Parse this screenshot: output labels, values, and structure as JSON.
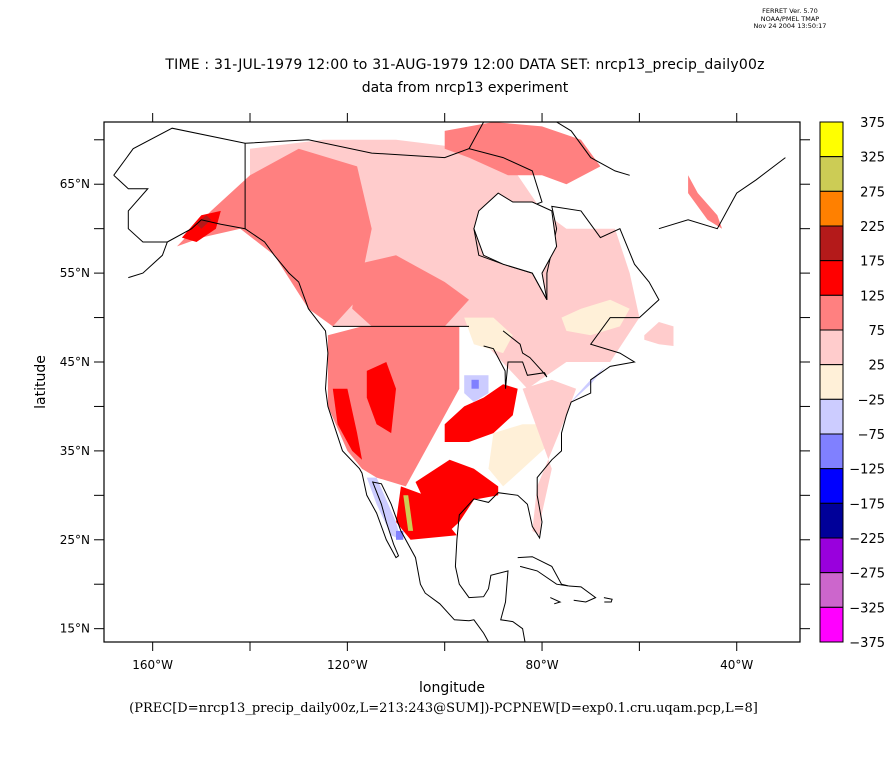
{
  "stamp": {
    "line1": "FERRET Ver. 5.70",
    "line2": "NOAA/PMEL TMAP",
    "line3": "Nov 24 2004 13:50:17"
  },
  "title": {
    "line1": "TIME : 31-JUL-1979 12:00 to 31-AUG-1979 12:00 DATA SET: nrcp13_precip_daily00z",
    "line2": "data from nrcp13 experiment"
  },
  "expression": "(PREC[D=nrcp13_precip_daily00z,L=213:243@SUM])-PCPNEW[D=exp0.1.cru.uqam.pcp,L=8]",
  "chart_data": {
    "type": "heatmap",
    "title": "TIME : 31-JUL-1979 12:00 to 31-AUG-1979 12:00 DATA SET: nrcp13_precip_daily00z",
    "subtitle": "data from nrcp13 experiment",
    "xlabel": "longitude",
    "ylabel": "latitude",
    "xlim": [
      -170,
      -27
    ],
    "ylim": [
      13.5,
      72
    ],
    "x_ticks": [
      {
        "value": -160,
        "label": "160°W"
      },
      {
        "value": -140,
        "label": ""
      },
      {
        "value": -120,
        "label": "120°W"
      },
      {
        "value": -100,
        "label": ""
      },
      {
        "value": -80,
        "label": "80°W"
      },
      {
        "value": -60,
        "label": ""
      },
      {
        "value": -40,
        "label": "40°W"
      }
    ],
    "y_ticks": [
      {
        "value": 15,
        "label": "15°N"
      },
      {
        "value": 20,
        "label": ""
      },
      {
        "value": 25,
        "label": "25°N"
      },
      {
        "value": 30,
        "label": ""
      },
      {
        "value": 35,
        "label": "35°N"
      },
      {
        "value": 40,
        "label": ""
      },
      {
        "value": 45,
        "label": "45°N"
      },
      {
        "value": 50,
        "label": ""
      },
      {
        "value": 55,
        "label": "55°N"
      },
      {
        "value": 60,
        "label": ""
      },
      {
        "value": 65,
        "label": "65°N"
      },
      {
        "value": 70,
        "label": ""
      }
    ],
    "colorbar": {
      "levels": [
        375,
        325,
        275,
        225,
        175,
        125,
        75,
        25,
        -25,
        -75,
        -125,
        -175,
        -225,
        -275,
        -325,
        -375
      ],
      "colors": [
        "#ffff00",
        "#cccc55",
        "#ff8000",
        "#b41a1a",
        "#ff0000",
        "#ff8080",
        "#ffcccc",
        "#fff0d8",
        "#ccccff",
        "#8080ff",
        "#0000ff",
        "#000099",
        "#9900dd",
        "#cc66cc",
        "#ff00ff"
      ]
    },
    "regions": [
      {
        "name": "canada-interior",
        "bin": 25,
        "poly": [
          [
            -140,
            69
          ],
          [
            -125,
            70
          ],
          [
            -110,
            70
          ],
          [
            -95,
            69
          ],
          [
            -85,
            66
          ],
          [
            -80,
            62
          ],
          [
            -75,
            60
          ],
          [
            -65,
            60
          ],
          [
            -62,
            55
          ],
          [
            -60,
            50
          ],
          [
            -66,
            45
          ],
          [
            -75,
            45
          ],
          [
            -83,
            42
          ],
          [
            -95,
            49
          ],
          [
            -123,
            49
          ],
          [
            -130,
            55
          ],
          [
            -140,
            60
          ]
        ]
      },
      {
        "name": "alaska-canada-west",
        "bin": 75,
        "poly": [
          [
            -155,
            58
          ],
          [
            -148,
            62
          ],
          [
            -140,
            66
          ],
          [
            -130,
            69
          ],
          [
            -118,
            67
          ],
          [
            -115,
            60
          ],
          [
            -118,
            52
          ],
          [
            -123,
            49
          ],
          [
            -128,
            51
          ],
          [
            -135,
            57
          ],
          [
            -142,
            60
          ],
          [
            -150,
            59
          ]
        ]
      },
      {
        "name": "arctic-islands",
        "bin": 75,
        "poly": [
          [
            -100,
            71
          ],
          [
            -90,
            72
          ],
          [
            -80,
            71.5
          ],
          [
            -72,
            70
          ],
          [
            -68,
            67
          ],
          [
            -75,
            65
          ],
          [
            -80,
            66
          ],
          [
            -87,
            66
          ],
          [
            -95,
            68
          ],
          [
            -100,
            69
          ]
        ]
      },
      {
        "name": "prairie-north",
        "bin": 75,
        "poly": [
          [
            -118,
            56
          ],
          [
            -110,
            57
          ],
          [
            -100,
            54
          ],
          [
            -95,
            52
          ],
          [
            -100,
            49
          ],
          [
            -115,
            49
          ],
          [
            -119,
            51
          ]
        ]
      },
      {
        "name": "alaska-gulf-core",
        "bin": 125,
        "poly": [
          [
            -154,
            59
          ],
          [
            -150,
            61.5
          ],
          [
            -146,
            62
          ],
          [
            -147,
            60
          ],
          [
            -151,
            58.5
          ]
        ]
      },
      {
        "name": "alaska-gulf-dark",
        "bin": 175,
        "poly": [
          [
            -151,
            60.5
          ],
          [
            -149,
            61.5
          ],
          [
            -148,
            61
          ],
          [
            -150,
            60
          ]
        ]
      },
      {
        "name": "quebec-labrador-lowneg",
        "bin": -25,
        "poly": [
          [
            -76,
            50
          ],
          [
            -72,
            51
          ],
          [
            -66,
            52
          ],
          [
            -62,
            51
          ],
          [
            -64,
            49
          ],
          [
            -70,
            48
          ],
          [
            -75,
            48.5
          ]
        ]
      },
      {
        "name": "great-lakes-north-neg",
        "bin": -25,
        "poly": [
          [
            -96,
            50
          ],
          [
            -90,
            50
          ],
          [
            -86,
            48
          ],
          [
            -88,
            46
          ],
          [
            -94,
            47
          ]
        ]
      },
      {
        "name": "us-west",
        "bin": 75,
        "poly": [
          [
            -124,
            48
          ],
          [
            -117,
            49
          ],
          [
            -104,
            49
          ],
          [
            -97,
            49
          ],
          [
            -97,
            42
          ],
          [
            -102,
            37
          ],
          [
            -108,
            31
          ],
          [
            -114,
            32
          ],
          [
            -117,
            33
          ],
          [
            -120,
            35
          ],
          [
            -124,
            40
          ]
        ]
      },
      {
        "name": "us-rockies-red",
        "bin": 125,
        "poly": [
          [
            -116,
            44
          ],
          [
            -112,
            45
          ],
          [
            -110,
            42
          ],
          [
            -111,
            37
          ],
          [
            -114,
            38
          ],
          [
            -116,
            41
          ]
        ]
      },
      {
        "name": "california-red",
        "bin": 125,
        "poly": [
          [
            -123,
            42
          ],
          [
            -120,
            42
          ],
          [
            -118,
            37
          ],
          [
            -117,
            34
          ],
          [
            -119,
            35
          ],
          [
            -122,
            38
          ]
        ]
      },
      {
        "name": "us-midwest-band",
        "bin": 125,
        "poly": [
          [
            -100,
            38
          ],
          [
            -96,
            40
          ],
          [
            -92,
            41
          ],
          [
            -88,
            42.5
          ],
          [
            -85,
            42
          ],
          [
            -86,
            39
          ],
          [
            -90,
            37
          ],
          [
            -95,
            36
          ],
          [
            -100,
            36
          ]
        ]
      },
      {
        "name": "iowa-neg",
        "bin": -75,
        "poly": [
          [
            -96,
            43.5
          ],
          [
            -91,
            43.5
          ],
          [
            -91,
            41.5
          ],
          [
            -94,
            40.5
          ],
          [
            -96,
            41.5
          ]
        ]
      },
      {
        "name": "iowa-core",
        "bin": -125,
        "poly": [
          [
            -94.5,
            43
          ],
          [
            -93,
            43
          ],
          [
            -93,
            42
          ],
          [
            -94.5,
            42
          ]
        ]
      },
      {
        "name": "southeast-neg",
        "bin": -25,
        "poly": [
          [
            -90,
            37
          ],
          [
            -84,
            38
          ],
          [
            -80,
            38
          ],
          [
            -78,
            36
          ],
          [
            -84,
            33
          ],
          [
            -88,
            31
          ],
          [
            -91,
            33
          ]
        ]
      },
      {
        "name": "east-coast-pos",
        "bin": 25,
        "poly": [
          [
            -84,
            42
          ],
          [
            -78,
            43
          ],
          [
            -73,
            42
          ],
          [
            -75,
            39
          ],
          [
            -78,
            35
          ],
          [
            -81,
            31
          ],
          [
            -82,
            26
          ],
          [
            -80.5,
            25.5
          ],
          [
            -80,
            28
          ],
          [
            -78,
            33
          ]
        ]
      },
      {
        "name": "east-coast-neg",
        "bin": -75,
        "poly": [
          [
            -74,
            40.5
          ],
          [
            -70,
            42.5
          ],
          [
            -67,
            44.5
          ],
          [
            -66,
            45
          ],
          [
            -70,
            43
          ],
          [
            -73,
            41.2
          ]
        ]
      },
      {
        "name": "texas-gulf",
        "bin": 125,
        "poly": [
          [
            -106,
            31.5
          ],
          [
            -99,
            34
          ],
          [
            -94,
            33
          ],
          [
            -89,
            31
          ],
          [
            -89,
            30
          ],
          [
            -94,
            29.5
          ],
          [
            -97,
            27
          ],
          [
            -99,
            26
          ],
          [
            -103,
            28
          ]
        ]
      },
      {
        "name": "mexico-north",
        "bin": 125,
        "poly": [
          [
            -109,
            31
          ],
          [
            -104,
            30
          ],
          [
            -99,
            26.5
          ],
          [
            -97.5,
            25.5
          ],
          [
            -107,
            25
          ],
          [
            -110,
            27
          ]
        ]
      },
      {
        "name": "mexico-yellow",
        "bin": 275,
        "poly": [
          [
            -108.5,
            30
          ],
          [
            -107.5,
            30
          ],
          [
            -106.5,
            26
          ],
          [
            -107.5,
            26
          ]
        ]
      },
      {
        "name": "baja-neg",
        "bin": -75,
        "poly": [
          [
            -116,
            32
          ],
          [
            -114,
            32
          ],
          [
            -110,
            27
          ],
          [
            -109,
            25
          ],
          [
            -111,
            25.5
          ],
          [
            -114,
            29
          ]
        ]
      },
      {
        "name": "sonora-blue",
        "bin": -125,
        "poly": [
          [
            -110,
            26
          ],
          [
            -108.5,
            26
          ],
          [
            -108.5,
            25
          ],
          [
            -110,
            25
          ]
        ]
      },
      {
        "name": "greenland-south",
        "bin": 75,
        "poly": [
          [
            -50,
            64
          ],
          [
            -46,
            61
          ],
          [
            -43,
            60
          ],
          [
            -44,
            61.5
          ],
          [
            -48,
            64
          ],
          [
            -50,
            66
          ]
        ]
      },
      {
        "name": "newfoundland",
        "bin": 25,
        "poly": [
          [
            -59,
            48
          ],
          [
            -56,
            49.5
          ],
          [
            -53,
            49
          ],
          [
            -53,
            46.8
          ],
          [
            -56,
            47
          ],
          [
            -59,
            47.5
          ]
        ]
      }
    ]
  }
}
